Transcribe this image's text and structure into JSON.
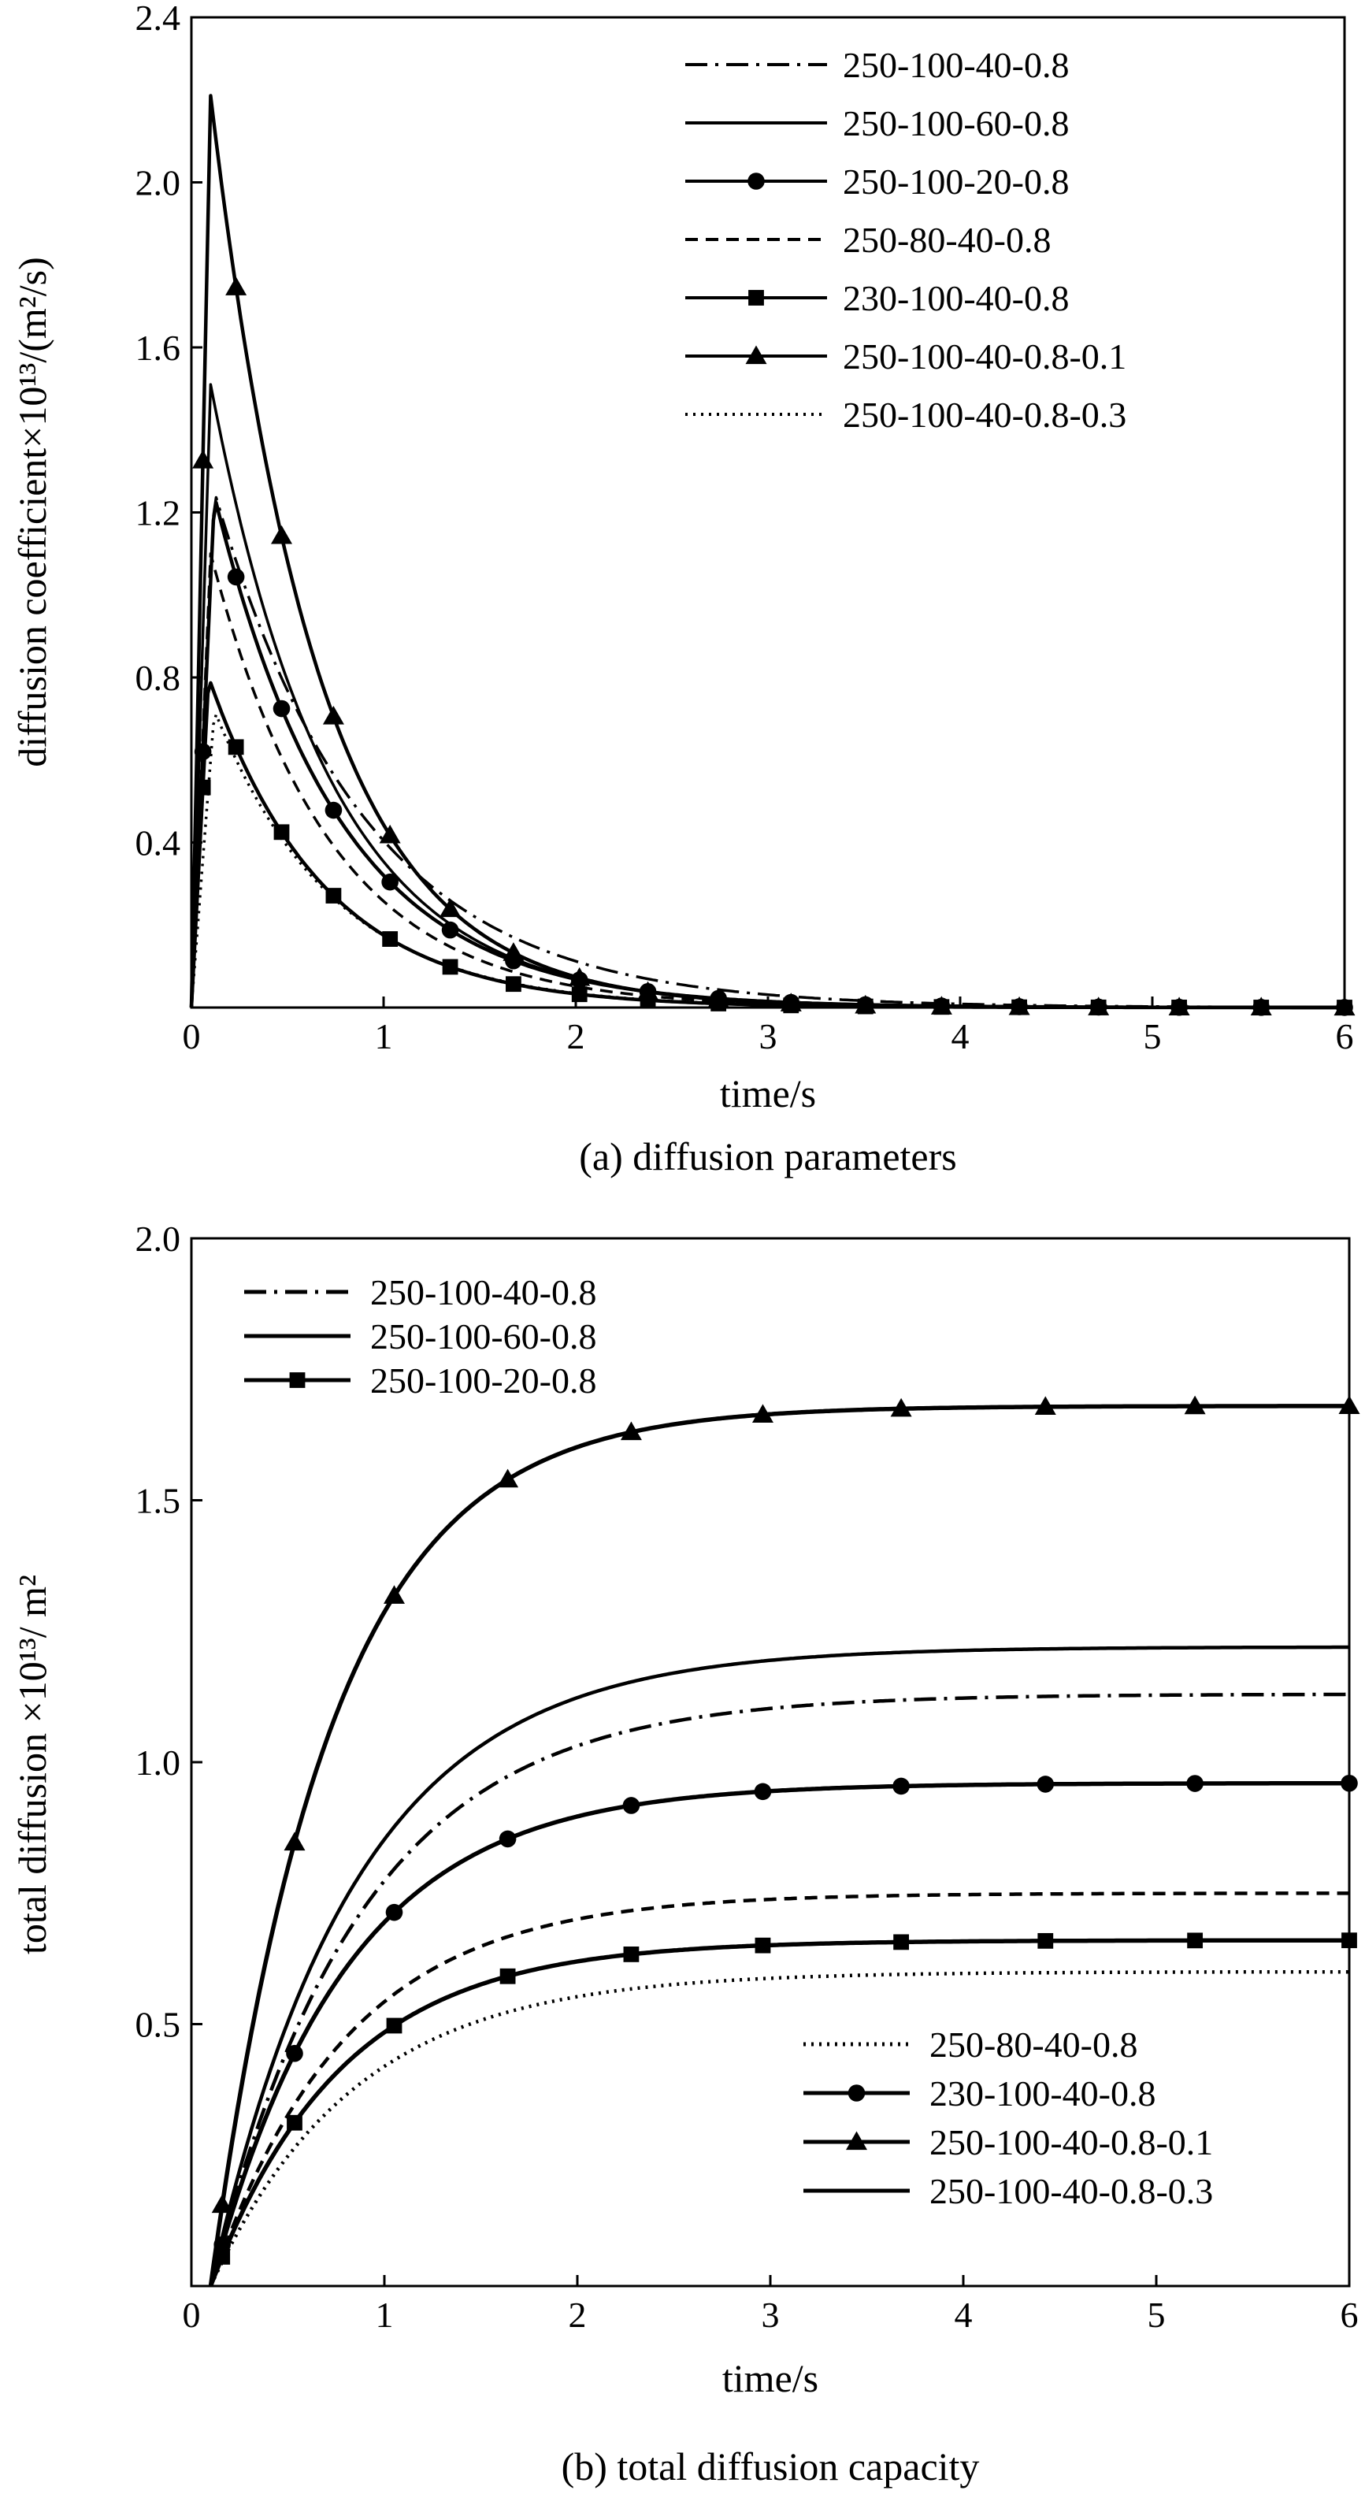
{
  "chart_data": [
    {
      "type": "line",
      "caption": "(a) diffusion parameters",
      "xlabel": "time/s",
      "ylabel": "diffusion coefficient×10¹³/(m²/s)",
      "xlim": [
        0,
        6
      ],
      "ylim": [
        0,
        2.4
      ],
      "xticks": [
        0,
        1,
        2,
        3,
        4,
        5,
        6
      ],
      "xtick_labels": [
        "0",
        "1",
        "2",
        "3",
        "4",
        "5",
        "6"
      ],
      "yticks": [
        0.4,
        0.8,
        1.2,
        1.6,
        2.0,
        2.4
      ],
      "ytick_labels": [
        "0.4",
        "0.8",
        "1.2",
        "1.6",
        "2.0",
        "2.4"
      ],
      "grid": false,
      "legend_position": "top-right",
      "curve_model": "rise to peak at t_peak, then exponential decay: y = peak * exp(-(t - t_peak)/tau)",
      "series": [
        {
          "name": "250-100-40-0.8",
          "style": "dashdot",
          "marker": "none",
          "t_peak": 0.12,
          "peak": 1.25,
          "tau": 0.78
        },
        {
          "name": "250-100-60-0.8",
          "style": "solid",
          "marker": "none",
          "t_peak": 0.1,
          "peak": 1.51,
          "tau": 0.62
        },
        {
          "name": "250-100-20-0.8",
          "style": "solid",
          "marker": "circle",
          "t_peak": 0.12,
          "peak": 1.24,
          "tau": 0.65
        },
        {
          "name": "250-80-40-0.8",
          "style": "dashed",
          "marker": "none",
          "t_peak": 0.1,
          "peak": 1.1,
          "tau": 0.62
        },
        {
          "name": "230-100-40-0.8",
          "style": "solid",
          "marker": "square",
          "t_peak": 0.09,
          "peak": 0.8,
          "tau": 0.6
        },
        {
          "name": "250-100-40-0.8-0.1",
          "style": "solid",
          "marker": "triangle",
          "t_peak": 0.1,
          "peak": 2.21,
          "tau": 0.56
        },
        {
          "name": "250-100-40-0.8-0.3",
          "style": "dotted",
          "marker": "none",
          "t_peak": 0.12,
          "peak": 0.72,
          "tau": 0.62
        }
      ]
    },
    {
      "type": "line",
      "caption": "(b) total diffusion capacity",
      "xlabel": "time/s",
      "ylabel": "total diffusion ×10¹³/ m²",
      "xlim": [
        0,
        6
      ],
      "ylim": [
        0,
        2.0
      ],
      "xticks": [
        0,
        1,
        2,
        3,
        4,
        5,
        6
      ],
      "xtick_labels": [
        "0",
        "1",
        "2",
        "3",
        "4",
        "5",
        "6"
      ],
      "yticks": [
        0.5,
        1.0,
        1.5,
        2.0
      ],
      "ytick_labels": [
        "0.5",
        "1.0",
        "1.5",
        "2.0"
      ],
      "grid": false,
      "legend_position": "split: top-left and bottom-right",
      "curve_model": "saturating rise from t0: y = plateau * (1 - exp(-(t - t0)/tau))",
      "series": [
        {
          "name": "250-100-40-0.8",
          "style": "dashdot",
          "marker": "none",
          "t0": 0.1,
          "plateau": 1.13,
          "tau": 0.78,
          "legend_group": "top-left"
        },
        {
          "name": "250-100-60-0.8",
          "style": "solid",
          "marker": "none",
          "t0": 0.1,
          "plateau": 1.22,
          "tau": 0.75,
          "legend_group": "top-left"
        },
        {
          "name": "250-100-20-0.8",
          "style": "solid",
          "marker": "circle",
          "t0": 0.1,
          "plateau": 0.96,
          "tau": 0.7,
          "legend_group": "top-left",
          "legend_marker": "square"
        },
        {
          "name": "250-80-40-0.8",
          "style": "dashed",
          "marker": "none",
          "t0": 0.1,
          "plateau": 0.75,
          "tau": 0.7,
          "legend_group": "bottom-right",
          "legend_style": "dotted"
        },
        {
          "name": "230-100-40-0.8",
          "style": "solid",
          "marker": "square",
          "t0": 0.1,
          "plateau": 0.66,
          "tau": 0.68,
          "legend_group": "bottom-right",
          "legend_marker": "circle"
        },
        {
          "name": "250-100-40-0.8-0.1",
          "style": "solid",
          "marker": "triangle",
          "t0": 0.1,
          "plateau": 1.68,
          "tau": 0.62,
          "legend_group": "bottom-right"
        },
        {
          "name": "250-100-40-0.8-0.3",
          "style": "dotted",
          "marker": "none",
          "t0": 0.1,
          "plateau": 0.6,
          "tau": 0.75,
          "legend_group": "bottom-right",
          "legend_style": "solid"
        }
      ]
    }
  ]
}
